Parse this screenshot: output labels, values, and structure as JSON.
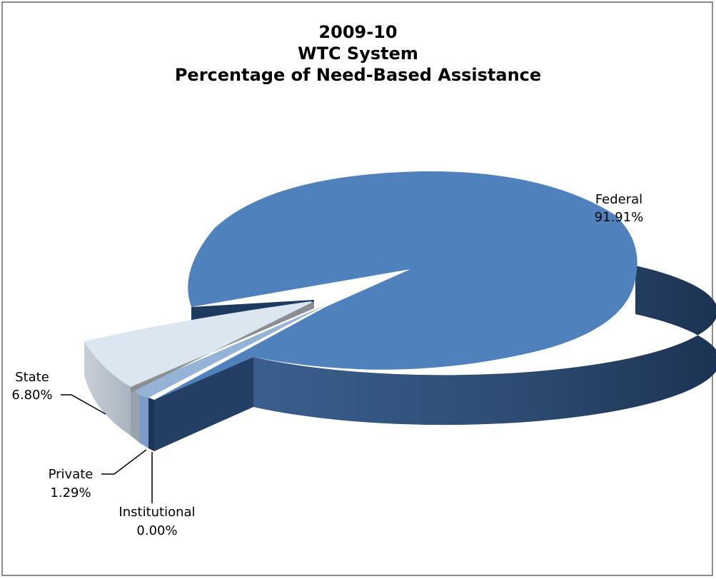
{
  "chart_data": {
    "type": "pie",
    "title_lines": [
      "2009-10",
      "WTC System",
      "Percentage of Need-Based Assistance"
    ],
    "slices": [
      {
        "label": "Federal",
        "value": 91.91,
        "value_label": "91.91%",
        "color": "#4f81bd"
      },
      {
        "label": "State",
        "value": 6.8,
        "value_label": "6.80%",
        "color": "#dce6f1"
      },
      {
        "label": "Private",
        "value": 1.29,
        "value_label": "1.29%",
        "color": "#95b3d7"
      },
      {
        "label": "Institutional",
        "value": 0.0,
        "value_label": "0.00%",
        "color": "#17375e"
      }
    ],
    "style": "3d-exploded",
    "legend": "none",
    "data_labels": "outside with leader lines"
  }
}
